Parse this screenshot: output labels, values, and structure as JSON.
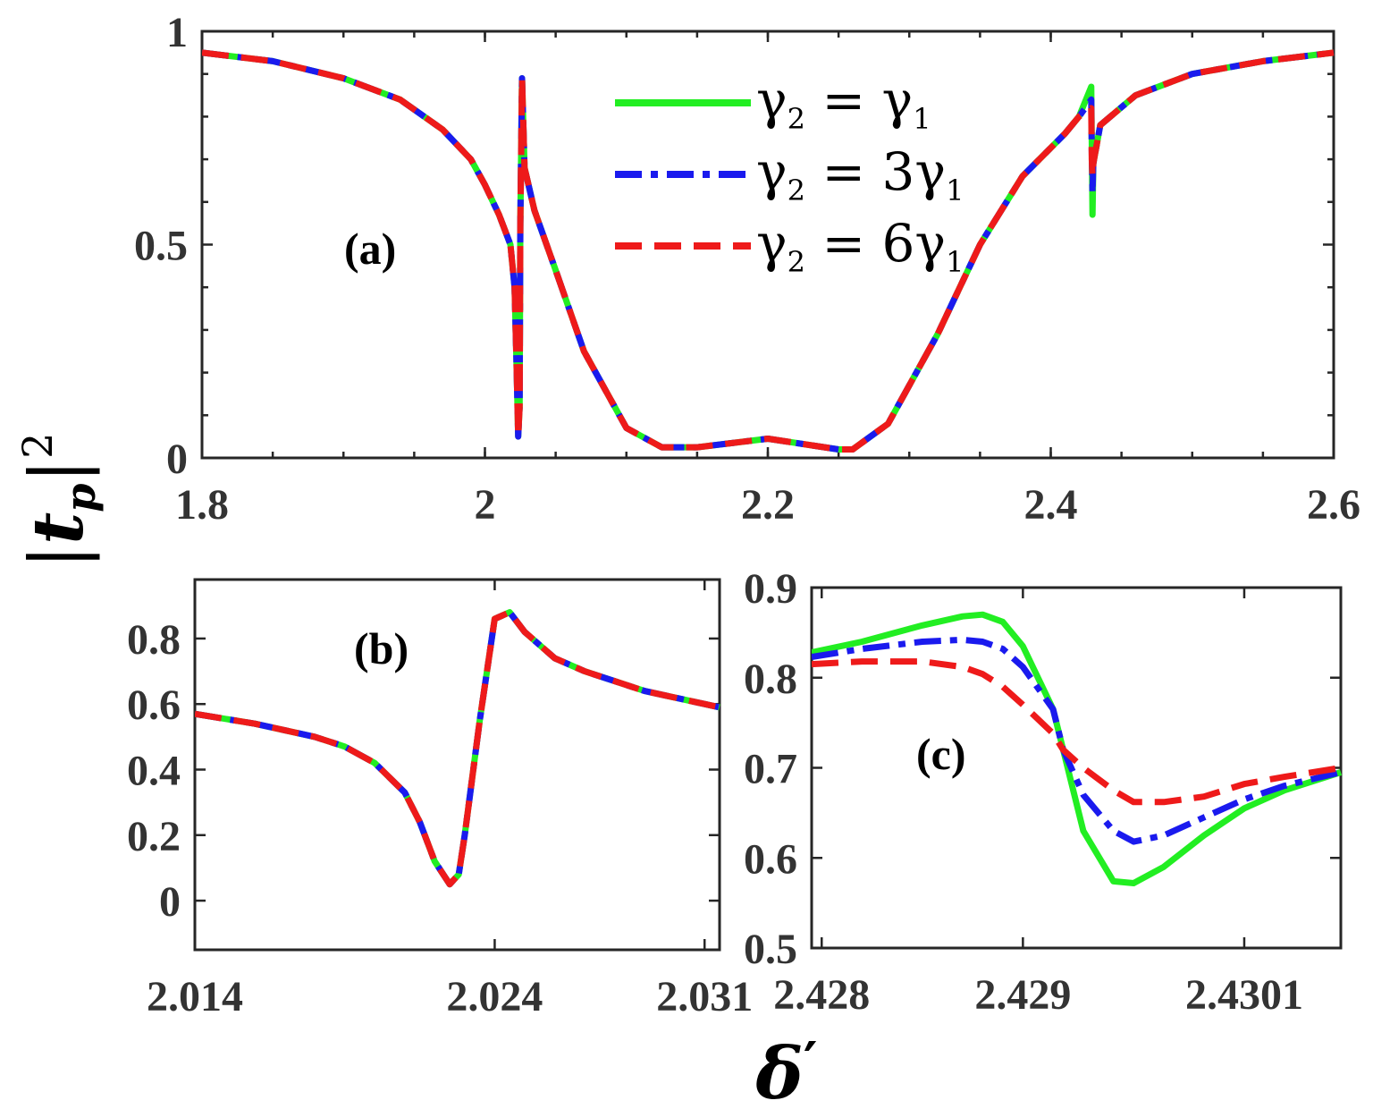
{
  "chart_data": [
    {
      "panel": "a",
      "type": "line",
      "panel_label": "(a)",
      "xlim": [
        1.8,
        2.6
      ],
      "ylim": [
        0,
        1
      ],
      "xticks": [
        1.8,
        2.0,
        2.2,
        2.4,
        2.6
      ],
      "xtick_labels": [
        "1.8",
        "2",
        "2.2",
        "2.4",
        "2.6"
      ],
      "yticks": [
        0,
        0.5,
        1
      ],
      "ytick_labels": [
        "0",
        "0.5",
        "1"
      ],
      "legend_position": "top-center",
      "series": [
        {
          "name": "γ2 = γ1",
          "style": "solid",
          "color": "#22ee22",
          "x": [
            1.8,
            1.85,
            1.9,
            1.94,
            1.97,
            1.99,
            2.0,
            2.01,
            2.018,
            2.021,
            2.0225,
            2.0235,
            2.0245,
            2.025,
            2.0262,
            2.028,
            2.035,
            2.05,
            2.07,
            2.1,
            2.125,
            2.15,
            2.2,
            2.25,
            2.26,
            2.285,
            2.32,
            2.35,
            2.38,
            2.41,
            2.42,
            2.4286,
            2.429,
            2.4295,
            2.4301,
            2.435,
            2.46,
            2.5,
            2.55,
            2.6
          ],
          "y": [
            0.95,
            0.93,
            0.89,
            0.84,
            0.77,
            0.7,
            0.64,
            0.57,
            0.5,
            0.4,
            0.2,
            0.05,
            0.12,
            0.55,
            0.89,
            0.68,
            0.58,
            0.44,
            0.25,
            0.07,
            0.025,
            0.025,
            0.045,
            0.02,
            0.02,
            0.08,
            0.29,
            0.5,
            0.66,
            0.76,
            0.8,
            0.87,
            0.74,
            0.57,
            0.69,
            0.78,
            0.85,
            0.9,
            0.93,
            0.95
          ]
        },
        {
          "name": "γ2 = 3γ1",
          "style": "dashdot",
          "color": "#1a1aee",
          "x": [
            1.8,
            1.85,
            1.9,
            1.94,
            1.97,
            1.99,
            2.0,
            2.01,
            2.018,
            2.021,
            2.0225,
            2.0235,
            2.0245,
            2.025,
            2.0262,
            2.028,
            2.035,
            2.05,
            2.07,
            2.1,
            2.125,
            2.15,
            2.2,
            2.25,
            2.26,
            2.285,
            2.32,
            2.35,
            2.38,
            2.41,
            2.42,
            2.4286,
            2.429,
            2.4295,
            2.4301,
            2.435,
            2.46,
            2.5,
            2.55,
            2.6
          ],
          "y": [
            0.95,
            0.93,
            0.89,
            0.84,
            0.77,
            0.7,
            0.64,
            0.57,
            0.5,
            0.4,
            0.2,
            0.05,
            0.12,
            0.55,
            0.89,
            0.68,
            0.58,
            0.44,
            0.25,
            0.07,
            0.025,
            0.025,
            0.045,
            0.02,
            0.02,
            0.08,
            0.29,
            0.5,
            0.66,
            0.76,
            0.8,
            0.84,
            0.72,
            0.62,
            0.69,
            0.78,
            0.85,
            0.9,
            0.93,
            0.95
          ]
        },
        {
          "name": "γ2 = 6γ1",
          "style": "dashed",
          "color": "#ee1a1a",
          "x": [
            1.8,
            1.85,
            1.9,
            1.94,
            1.97,
            1.99,
            2.0,
            2.01,
            2.018,
            2.021,
            2.0225,
            2.0235,
            2.0245,
            2.025,
            2.0262,
            2.028,
            2.035,
            2.05,
            2.07,
            2.1,
            2.125,
            2.15,
            2.2,
            2.25,
            2.26,
            2.285,
            2.32,
            2.35,
            2.38,
            2.41,
            2.42,
            2.4286,
            2.429,
            2.4295,
            2.4301,
            2.435,
            2.46,
            2.5,
            2.55,
            2.6
          ],
          "y": [
            0.95,
            0.93,
            0.89,
            0.84,
            0.77,
            0.7,
            0.64,
            0.57,
            0.5,
            0.4,
            0.2,
            0.05,
            0.12,
            0.55,
            0.89,
            0.68,
            0.58,
            0.44,
            0.25,
            0.07,
            0.025,
            0.025,
            0.045,
            0.02,
            0.02,
            0.08,
            0.29,
            0.5,
            0.66,
            0.76,
            0.8,
            0.82,
            0.7,
            0.66,
            0.69,
            0.78,
            0.85,
            0.9,
            0.93,
            0.95
          ]
        }
      ]
    },
    {
      "panel": "b",
      "type": "line",
      "panel_label": "(b)",
      "xlim": [
        2.014,
        2.0315
      ],
      "ylim": [
        -0.15,
        0.98
      ],
      "xticks": [
        2.014,
        2.024,
        2.031
      ],
      "xtick_labels": [
        "2.014",
        "2.024",
        "2.031"
      ],
      "yticks": [
        0,
        0.2,
        0.4,
        0.6,
        0.8
      ],
      "ytick_labels": [
        "0",
        "0.2",
        "0.4",
        "0.6",
        "0.8"
      ],
      "series": [
        {
          "name": "γ2 = γ1",
          "style": "solid",
          "color": "#22ee22",
          "x": [
            2.014,
            2.016,
            2.018,
            2.019,
            2.02,
            2.021,
            2.0215,
            2.022,
            2.0225,
            2.0228,
            2.023,
            2.0235,
            2.024,
            2.0245,
            2.025,
            2.026,
            2.027,
            2.028,
            2.029,
            2.03,
            2.031,
            2.0315
          ],
          "y": [
            0.57,
            0.54,
            0.5,
            0.47,
            0.42,
            0.33,
            0.24,
            0.12,
            0.05,
            0.08,
            0.2,
            0.55,
            0.86,
            0.88,
            0.82,
            0.74,
            0.7,
            0.67,
            0.64,
            0.62,
            0.6,
            0.59
          ]
        },
        {
          "name": "γ2 = 3γ1",
          "style": "dashdot",
          "color": "#1a1aee",
          "x": [
            2.014,
            2.016,
            2.018,
            2.019,
            2.02,
            2.021,
            2.0215,
            2.022,
            2.0225,
            2.0228,
            2.023,
            2.0235,
            2.024,
            2.0245,
            2.025,
            2.026,
            2.027,
            2.028,
            2.029,
            2.03,
            2.031,
            2.0315
          ],
          "y": [
            0.57,
            0.54,
            0.5,
            0.47,
            0.42,
            0.33,
            0.24,
            0.12,
            0.05,
            0.08,
            0.2,
            0.55,
            0.86,
            0.88,
            0.82,
            0.74,
            0.7,
            0.67,
            0.64,
            0.62,
            0.6,
            0.59
          ]
        },
        {
          "name": "γ2 = 6γ1",
          "style": "dashed",
          "color": "#ee1a1a",
          "x": [
            2.014,
            2.016,
            2.018,
            2.019,
            2.02,
            2.021,
            2.0215,
            2.022,
            2.0225,
            2.0228,
            2.023,
            2.0235,
            2.024,
            2.0245,
            2.025,
            2.026,
            2.027,
            2.028,
            2.029,
            2.03,
            2.031,
            2.0315
          ],
          "y": [
            0.57,
            0.54,
            0.5,
            0.47,
            0.42,
            0.33,
            0.24,
            0.12,
            0.05,
            0.08,
            0.2,
            0.55,
            0.86,
            0.88,
            0.82,
            0.74,
            0.7,
            0.67,
            0.64,
            0.62,
            0.6,
            0.59
          ]
        }
      ]
    },
    {
      "panel": "c",
      "type": "line",
      "panel_label": "(c)",
      "xlim": [
        2.42795,
        2.43058
      ],
      "ylim": [
        0.5,
        0.9
      ],
      "xticks": [
        2.428,
        2.429,
        2.4301
      ],
      "xtick_labels": [
        "2.428",
        "2.429",
        "2.4301"
      ],
      "yticks": [
        0.5,
        0.6,
        0.7,
        0.8,
        0.9
      ],
      "ytick_labels": [
        "0.5",
        "0.6",
        "0.7",
        "0.8",
        "0.9"
      ],
      "series": [
        {
          "name": "γ2 = γ1",
          "style": "solid",
          "color": "#22ee22",
          "x": [
            2.42795,
            2.4282,
            2.4285,
            2.4287,
            2.4288,
            2.4289,
            2.429,
            2.42915,
            2.4292,
            2.4293,
            2.42945,
            2.42955,
            2.4297,
            2.4299,
            2.4301,
            2.4303,
            2.43058
          ],
          "y": [
            0.828,
            0.84,
            0.858,
            0.868,
            0.87,
            0.862,
            0.835,
            0.765,
            0.72,
            0.63,
            0.574,
            0.572,
            0.59,
            0.625,
            0.655,
            0.675,
            0.695
          ]
        },
        {
          "name": "γ2 = 3γ1",
          "style": "dashdot",
          "color": "#1a1aee",
          "x": [
            2.42795,
            2.4282,
            2.4285,
            2.4287,
            2.4288,
            2.4289,
            2.429,
            2.42915,
            2.4292,
            2.4293,
            2.42945,
            2.42955,
            2.4297,
            2.4299,
            2.4301,
            2.4303,
            2.43058
          ],
          "y": [
            0.823,
            0.832,
            0.84,
            0.842,
            0.84,
            0.832,
            0.812,
            0.765,
            0.72,
            0.67,
            0.63,
            0.618,
            0.625,
            0.645,
            0.665,
            0.68,
            0.695
          ]
        },
        {
          "name": "γ2 = 6γ1",
          "style": "dashed",
          "color": "#ee1a1a",
          "x": [
            2.42795,
            2.4282,
            2.4285,
            2.4287,
            2.4288,
            2.4289,
            2.429,
            2.42915,
            2.4292,
            2.4293,
            2.42945,
            2.42955,
            2.4297,
            2.4299,
            2.4301,
            2.4303,
            2.43058
          ],
          "y": [
            0.815,
            0.818,
            0.818,
            0.812,
            0.804,
            0.79,
            0.77,
            0.738,
            0.72,
            0.7,
            0.675,
            0.662,
            0.662,
            0.668,
            0.682,
            0.69,
            0.7
          ]
        }
      ]
    }
  ],
  "legend": {
    "entries": [
      {
        "base": "γ",
        "sub1": "2",
        "eq": " = ",
        "coef": "",
        "base2": "γ",
        "sub2": "1",
        "color": "#22ee22",
        "style": "solid"
      },
      {
        "base": "γ",
        "sub1": "2",
        "eq": " = ",
        "coef": "3",
        "base2": "γ",
        "sub2": "1",
        "color": "#1a1aee",
        "style": "dashdot"
      },
      {
        "base": "γ",
        "sub1": "2",
        "eq": " = ",
        "coef": "6",
        "base2": "γ",
        "sub2": "1",
        "color": "#ee1a1a",
        "style": "dashed"
      }
    ]
  },
  "axes": {
    "ylabel": {
      "open": "|",
      "var": "t",
      "sub": "p",
      "close": "|",
      "sup": "2"
    },
    "xlabel": {
      "var": "δ",
      "prime": "′"
    }
  }
}
